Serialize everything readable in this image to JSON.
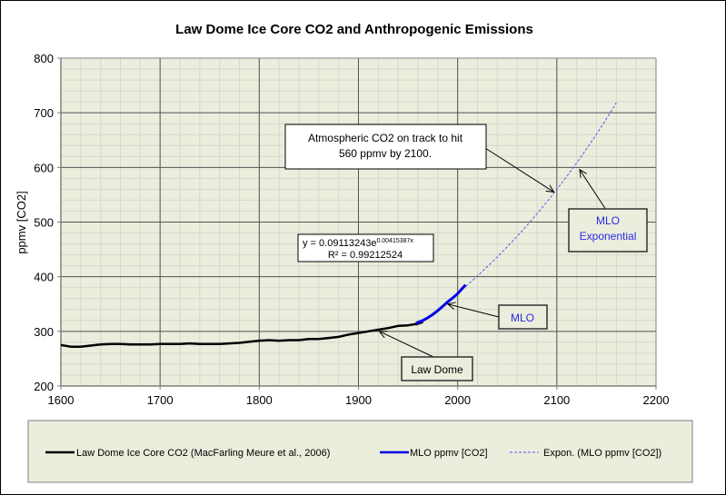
{
  "chart_data": {
    "type": "line",
    "title": "Law Dome Ice Core CO2 and Anthropogenic Emissions",
    "xlabel": "",
    "ylabel": "ppmv [CO2]",
    "xlim": [
      1600,
      2200
    ],
    "ylim": [
      200,
      800
    ],
    "x_ticks": [
      "1600",
      "1700",
      "1800",
      "1900",
      "2000",
      "2100",
      "2200"
    ],
    "y_ticks": [
      "200",
      "300",
      "400",
      "500",
      "600",
      "700",
      "800"
    ],
    "x_minor_step": 20,
    "y_minor_step": 20,
    "grid": true,
    "legend_position": "bottom",
    "colors": {
      "plot_background": "#ebeddd",
      "law_dome": "#000000",
      "mlo": "#0000e6",
      "expon": "#5a5ae8",
      "major_grid": "#555555",
      "minor_grid": "#d6d8cc",
      "callout_fill": "#ebeddd",
      "callout_blue_text": "#2a2ae0"
    },
    "series": [
      {
        "name": "Law Dome Ice Core CO2 (MacFarling Meure et al., 2006)",
        "style": "solid-thick",
        "x": [
          1600,
          1610,
          1620,
          1630,
          1640,
          1650,
          1660,
          1670,
          1680,
          1690,
          1700,
          1710,
          1720,
          1730,
          1740,
          1750,
          1760,
          1770,
          1780,
          1790,
          1800,
          1810,
          1820,
          1830,
          1840,
          1850,
          1860,
          1870,
          1880,
          1890,
          1900,
          1910,
          1920,
          1930,
          1940,
          1950,
          1960,
          1965
        ],
        "values": [
          275,
          272,
          272,
          274,
          276,
          277,
          277,
          276,
          276,
          276,
          277,
          277,
          277,
          278,
          277,
          277,
          277,
          278,
          279,
          281,
          283,
          284,
          283,
          284,
          284,
          286,
          286,
          288,
          290,
          294,
          297,
          300,
          303,
          306,
          310,
          311,
          314,
          317
        ]
      },
      {
        "name": "MLO ppmv [CO2]",
        "style": "solid-thick",
        "x": [
          1958,
          1965,
          1970,
          1975,
          1980,
          1985,
          1990,
          1995,
          2000,
          2005,
          2008
        ],
        "values": [
          315,
          320,
          325,
          331,
          338,
          346,
          354,
          361,
          369,
          379,
          385
        ]
      },
      {
        "name": "Expon. (MLO ppmv [CO2])",
        "style": "dashed-thin",
        "equation": "y = 0.09113243e^(0.00415387x)",
        "a": 0.09113243,
        "b": 0.00415387,
        "x_range": [
          1958,
          2160
        ]
      }
    ],
    "annotations": [
      {
        "id": "track",
        "lines": [
          "Atmospheric CO2 on track to hit",
          "560 ppmv by 2100."
        ],
        "arrow_to": [
          2097,
          555
        ]
      },
      {
        "id": "equation",
        "lines": [
          "y = 0.09113243e",
          "R² = 0.99212524"
        ],
        "superscript": "0.00415387x"
      },
      {
        "id": "mlo-exp",
        "lines": [
          "MLO",
          "Exponential"
        ],
        "arrow_to": [
          2123,
          596
        ]
      },
      {
        "id": "mlo",
        "lines": [
          "MLO"
        ],
        "arrow_to": [
          1990,
          350
        ]
      },
      {
        "id": "law-dome",
        "lines": [
          "Law Dome"
        ],
        "arrow_to": [
          1921,
          300
        ]
      }
    ],
    "legend": [
      {
        "label": "Law Dome Ice Core CO2 (MacFarling Meure et al., 2006)",
        "style": "solid-black"
      },
      {
        "label": "MLO ppmv [CO2]",
        "style": "solid-blue"
      },
      {
        "label": "Expon. (MLO ppmv [CO2])",
        "style": "dashed-blue"
      }
    ]
  }
}
